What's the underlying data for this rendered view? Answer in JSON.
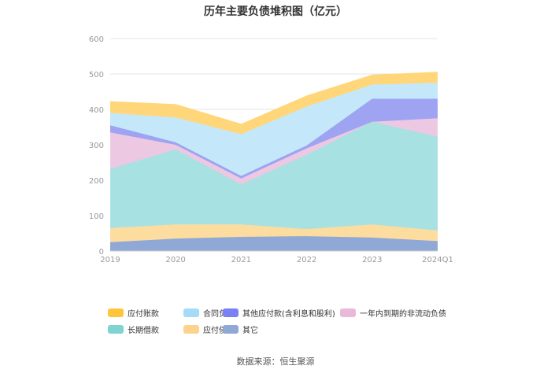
{
  "title": "历年主要负债堆积图（亿元）",
  "source": "数据来源：恒生聚源",
  "chart_data": {
    "type": "area",
    "stacked": true,
    "x": [
      "2019",
      "2020",
      "2021",
      "2022",
      "2023",
      "2024Q1"
    ],
    "ylim": [
      0,
      600
    ],
    "yticks": [
      "0",
      "100",
      "200",
      "300",
      "400",
      "500",
      "600"
    ],
    "grid": true,
    "legend_position": "bottom",
    "series": [
      {
        "name": "其它",
        "color": "#8fa8d6",
        "values": [
          25,
          35,
          40,
          42,
          38,
          28
        ]
      },
      {
        "name": "应付债券",
        "color": "#fddca0",
        "values": [
          40,
          40,
          35,
          20,
          37,
          30
        ]
      },
      {
        "name": "长期借款",
        "color": "#a8e1e1",
        "values": [
          167,
          212,
          113,
          210,
          290,
          265
        ]
      },
      {
        "name": "一年内到期的非流动负债",
        "color": "#ecc8e2",
        "values": [
          103,
          13,
          17,
          18,
          0,
          52
        ]
      },
      {
        "name": "其他应付款(含利息和股利)",
        "color": "#9ea3f2",
        "values": [
          20,
          7,
          7,
          8,
          65,
          55
        ]
      },
      {
        "name": "合同负债",
        "color": "#c4e8fa",
        "values": [
          35,
          70,
          118,
          110,
          40,
          45
        ]
      },
      {
        "name": "应付账款",
        "color": "#ffd77a",
        "values": [
          32,
          37,
          28,
          30,
          27,
          30
        ]
      }
    ],
    "legend": [
      {
        "name": "应付账款",
        "color": "#ffc53d"
      },
      {
        "name": "合同负债",
        "color": "#a3dbf8"
      },
      {
        "name": "其他应付款(含利息和股利)",
        "color": "#7b80f5"
      },
      {
        "name": "一年内到期的非流动负债",
        "color": "#eab8d9"
      },
      {
        "name": "长期借款",
        "color": "#7ed3d3"
      },
      {
        "name": "应付债券",
        "color": "#fdd28c"
      },
      {
        "name": "其它",
        "color": "#8fa8d6"
      }
    ]
  }
}
